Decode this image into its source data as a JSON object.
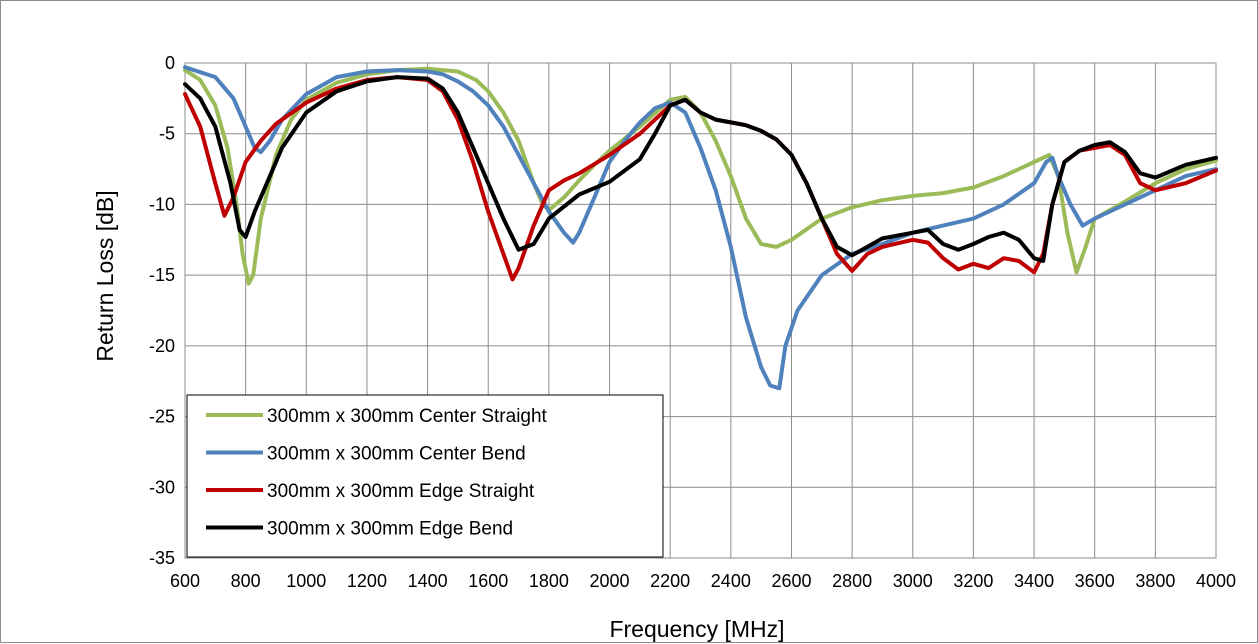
{
  "chart_data": {
    "type": "line",
    "title": "",
    "xlabel": "Frequency [MHz]",
    "ylabel": "Return Loss [dB]",
    "xlim": [
      600,
      4000
    ],
    "ylim": [
      -35,
      0
    ],
    "x_ticks": [
      600,
      800,
      1000,
      1200,
      1400,
      1600,
      1800,
      2000,
      2200,
      2400,
      2600,
      2800,
      3000,
      3200,
      3400,
      3600,
      3800,
      4000
    ],
    "y_ticks": [
      0,
      -5,
      -10,
      -15,
      -20,
      -25,
      -30,
      -35
    ],
    "grid": true,
    "legend_position": "bottom-left",
    "series": [
      {
        "name": "300mm x 300mm Center Straight",
        "color": "#9bbb59",
        "points": [
          [
            600,
            -0.5
          ],
          [
            650,
            -1.2
          ],
          [
            700,
            -3
          ],
          [
            740,
            -6
          ],
          [
            770,
            -10
          ],
          [
            790,
            -13.5
          ],
          [
            810,
            -15.6
          ],
          [
            825,
            -15
          ],
          [
            850,
            -11
          ],
          [
            900,
            -6.5
          ],
          [
            950,
            -4
          ],
          [
            1000,
            -2.6
          ],
          [
            1100,
            -1.4
          ],
          [
            1200,
            -0.8
          ],
          [
            1300,
            -0.5
          ],
          [
            1400,
            -0.4
          ],
          [
            1500,
            -0.6
          ],
          [
            1560,
            -1.2
          ],
          [
            1600,
            -2
          ],
          [
            1650,
            -3.5
          ],
          [
            1700,
            -5.5
          ],
          [
            1750,
            -8.5
          ],
          [
            1780,
            -10
          ],
          [
            1800,
            -10.4
          ],
          [
            1850,
            -9.5
          ],
          [
            1900,
            -8.3
          ],
          [
            1950,
            -7.2
          ],
          [
            2000,
            -6.2
          ],
          [
            2100,
            -4.5
          ],
          [
            2200,
            -2.6
          ],
          [
            2250,
            -2.4
          ],
          [
            2300,
            -3.5
          ],
          [
            2350,
            -5.5
          ],
          [
            2400,
            -8
          ],
          [
            2450,
            -11
          ],
          [
            2500,
            -12.8
          ],
          [
            2550,
            -13
          ],
          [
            2600,
            -12.5
          ],
          [
            2700,
            -11
          ],
          [
            2800,
            -10.2
          ],
          [
            2900,
            -9.7
          ],
          [
            3000,
            -9.4
          ],
          [
            3100,
            -9.2
          ],
          [
            3200,
            -8.8
          ],
          [
            3300,
            -8
          ],
          [
            3400,
            -7
          ],
          [
            3450,
            -6.5
          ],
          [
            3480,
            -8
          ],
          [
            3510,
            -12
          ],
          [
            3540,
            -14.8
          ],
          [
            3570,
            -13
          ],
          [
            3600,
            -11
          ],
          [
            3650,
            -10.4
          ],
          [
            3700,
            -9.8
          ],
          [
            3800,
            -8.5
          ],
          [
            3900,
            -7.5
          ],
          [
            4000,
            -6.9
          ]
        ]
      },
      {
        "name": "300mm x 300mm Center Bend",
        "color": "#4f81bd",
        "points": [
          [
            600,
            -0.3
          ],
          [
            700,
            -1
          ],
          [
            760,
            -2.5
          ],
          [
            800,
            -4.5
          ],
          [
            830,
            -6
          ],
          [
            850,
            -6.3
          ],
          [
            880,
            -5.5
          ],
          [
            920,
            -4
          ],
          [
            1000,
            -2.2
          ],
          [
            1100,
            -1
          ],
          [
            1200,
            -0.6
          ],
          [
            1300,
            -0.5
          ],
          [
            1400,
            -0.6
          ],
          [
            1450,
            -0.8
          ],
          [
            1500,
            -1.3
          ],
          [
            1550,
            -2
          ],
          [
            1600,
            -3
          ],
          [
            1650,
            -4.5
          ],
          [
            1700,
            -6.5
          ],
          [
            1750,
            -8.5
          ],
          [
            1800,
            -10.5
          ],
          [
            1850,
            -12
          ],
          [
            1880,
            -12.7
          ],
          [
            1900,
            -12
          ],
          [
            1950,
            -9.5
          ],
          [
            2000,
            -7
          ],
          [
            2050,
            -5.5
          ],
          [
            2100,
            -4.2
          ],
          [
            2150,
            -3.2
          ],
          [
            2200,
            -2.8
          ],
          [
            2250,
            -3.5
          ],
          [
            2300,
            -6
          ],
          [
            2350,
            -9
          ],
          [
            2400,
            -13
          ],
          [
            2450,
            -18
          ],
          [
            2500,
            -21.5
          ],
          [
            2530,
            -22.8
          ],
          [
            2560,
            -23
          ],
          [
            2580,
            -20
          ],
          [
            2620,
            -17.5
          ],
          [
            2700,
            -15
          ],
          [
            2800,
            -13.5
          ],
          [
            2900,
            -12.8
          ],
          [
            3000,
            -12
          ],
          [
            3100,
            -11.5
          ],
          [
            3200,
            -11
          ],
          [
            3300,
            -10
          ],
          [
            3400,
            -8.5
          ],
          [
            3440,
            -7
          ],
          [
            3460,
            -6.7
          ],
          [
            3480,
            -8
          ],
          [
            3520,
            -10
          ],
          [
            3560,
            -11.5
          ],
          [
            3600,
            -11
          ],
          [
            3650,
            -10.5
          ],
          [
            3700,
            -10
          ],
          [
            3800,
            -9
          ],
          [
            3900,
            -8
          ],
          [
            4000,
            -7.5
          ]
        ]
      },
      {
        "name": "300mm x 300mm Edge Straight",
        "color": "#c00000",
        "points": [
          [
            600,
            -2.2
          ],
          [
            650,
            -4.5
          ],
          [
            700,
            -8.5
          ],
          [
            730,
            -10.8
          ],
          [
            760,
            -9.5
          ],
          [
            800,
            -7
          ],
          [
            850,
            -5.5
          ],
          [
            900,
            -4.3
          ],
          [
            1000,
            -2.8
          ],
          [
            1100,
            -1.8
          ],
          [
            1200,
            -1.2
          ],
          [
            1300,
            -1
          ],
          [
            1400,
            -1.2
          ],
          [
            1450,
            -2
          ],
          [
            1500,
            -4
          ],
          [
            1550,
            -7
          ],
          [
            1600,
            -10.5
          ],
          [
            1650,
            -13.5
          ],
          [
            1680,
            -15.3
          ],
          [
            1700,
            -14.5
          ],
          [
            1750,
            -11.5
          ],
          [
            1800,
            -9
          ],
          [
            1850,
            -8.3
          ],
          [
            1900,
            -7.8
          ],
          [
            2000,
            -6.5
          ],
          [
            2100,
            -5
          ],
          [
            2150,
            -4
          ],
          [
            2200,
            -3
          ],
          [
            2250,
            -2.6
          ],
          [
            2300,
            -3.5
          ],
          [
            2350,
            -4
          ],
          [
            2400,
            -4.2
          ],
          [
            2450,
            -4.4
          ],
          [
            2500,
            -4.8
          ],
          [
            2550,
            -5.4
          ],
          [
            2600,
            -6.5
          ],
          [
            2650,
            -8.5
          ],
          [
            2700,
            -11
          ],
          [
            2750,
            -13.5
          ],
          [
            2800,
            -14.7
          ],
          [
            2850,
            -13.5
          ],
          [
            2900,
            -13
          ],
          [
            3000,
            -12.5
          ],
          [
            3050,
            -12.7
          ],
          [
            3100,
            -13.8
          ],
          [
            3150,
            -14.6
          ],
          [
            3200,
            -14.2
          ],
          [
            3250,
            -14.5
          ],
          [
            3300,
            -13.8
          ],
          [
            3350,
            -14
          ],
          [
            3400,
            -14.8
          ],
          [
            3430,
            -13.5
          ],
          [
            3460,
            -10
          ],
          [
            3500,
            -7
          ],
          [
            3550,
            -6.2
          ],
          [
            3600,
            -6
          ],
          [
            3650,
            -5.8
          ],
          [
            3700,
            -6.5
          ],
          [
            3750,
            -8.5
          ],
          [
            3800,
            -9
          ],
          [
            3900,
            -8.5
          ],
          [
            4000,
            -7.6
          ]
        ]
      },
      {
        "name": "300mm x 300mm Edge Bend",
        "color": "#000000",
        "points": [
          [
            600,
            -1.5
          ],
          [
            650,
            -2.5
          ],
          [
            700,
            -4.5
          ],
          [
            750,
            -8.5
          ],
          [
            780,
            -11.8
          ],
          [
            800,
            -12.3
          ],
          [
            830,
            -10.5
          ],
          [
            870,
            -8.5
          ],
          [
            920,
            -6
          ],
          [
            1000,
            -3.5
          ],
          [
            1100,
            -2
          ],
          [
            1200,
            -1.3
          ],
          [
            1300,
            -1
          ],
          [
            1400,
            -1.1
          ],
          [
            1450,
            -1.8
          ],
          [
            1500,
            -3.5
          ],
          [
            1550,
            -6
          ],
          [
            1600,
            -8.5
          ],
          [
            1650,
            -11
          ],
          [
            1700,
            -13.2
          ],
          [
            1750,
            -12.8
          ],
          [
            1800,
            -11
          ],
          [
            1900,
            -9.3
          ],
          [
            2000,
            -8.4
          ],
          [
            2100,
            -6.8
          ],
          [
            2150,
            -5
          ],
          [
            2200,
            -3
          ],
          [
            2250,
            -2.6
          ],
          [
            2300,
            -3.5
          ],
          [
            2350,
            -4
          ],
          [
            2400,
            -4.2
          ],
          [
            2450,
            -4.4
          ],
          [
            2500,
            -4.8
          ],
          [
            2550,
            -5.4
          ],
          [
            2600,
            -6.5
          ],
          [
            2650,
            -8.5
          ],
          [
            2700,
            -11
          ],
          [
            2750,
            -13
          ],
          [
            2800,
            -13.6
          ],
          [
            2850,
            -13
          ],
          [
            2900,
            -12.4
          ],
          [
            3000,
            -12
          ],
          [
            3050,
            -11.8
          ],
          [
            3100,
            -12.8
          ],
          [
            3150,
            -13.2
          ],
          [
            3200,
            -12.8
          ],
          [
            3250,
            -12.3
          ],
          [
            3300,
            -12
          ],
          [
            3350,
            -12.5
          ],
          [
            3400,
            -13.8
          ],
          [
            3430,
            -14
          ],
          [
            3460,
            -10
          ],
          [
            3500,
            -7
          ],
          [
            3550,
            -6.2
          ],
          [
            3600,
            -5.8
          ],
          [
            3650,
            -5.6
          ],
          [
            3700,
            -6.3
          ],
          [
            3750,
            -7.8
          ],
          [
            3800,
            -8.1
          ],
          [
            3900,
            -7.2
          ],
          [
            4000,
            -6.7
          ]
        ]
      }
    ]
  }
}
